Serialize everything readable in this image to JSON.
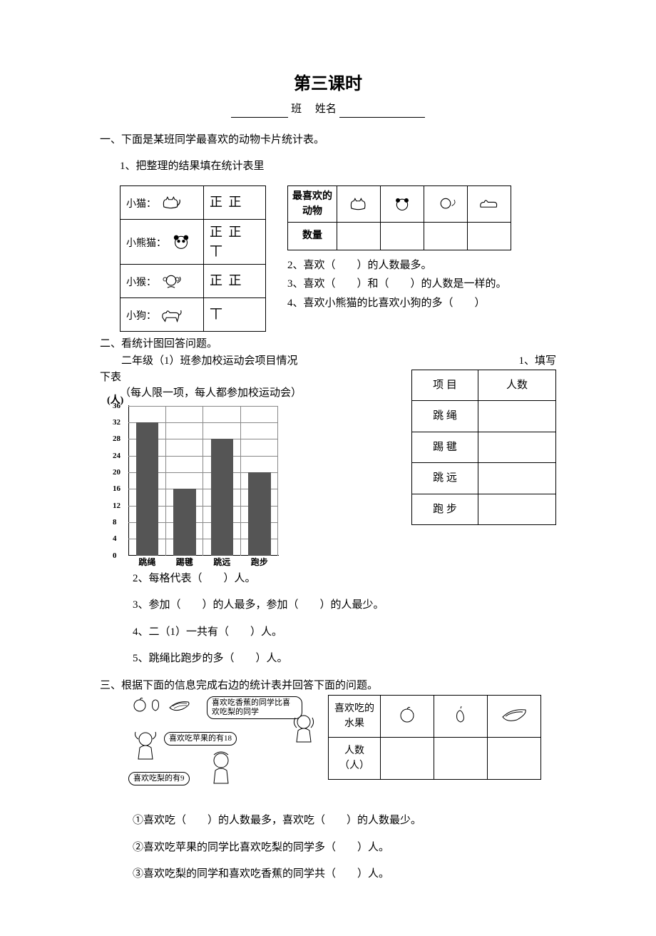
{
  "title": "第三课时",
  "class_label": "班",
  "name_label": "姓名",
  "q1": {
    "heading": "一、下面是某班同学最喜欢的动物卡片统计表。",
    "sub1": "1、把整理的结果填在统计表里",
    "animals": [
      {
        "name": "小猫：",
        "tally": "正 正"
      },
      {
        "name": "小熊猫：",
        "tally": "正 正 丅"
      },
      {
        "name": "小猴：",
        "tally": "正 正"
      },
      {
        "name": "小狗：",
        "tally": "丅"
      }
    ],
    "count_header": "最喜欢的动物",
    "count_row_label": "数量",
    "q2": "2、喜欢（　　）的人数最多。",
    "q3": "3、喜欢（　　）和（　　）的人数是一样的。",
    "q4": "4、喜欢小熊猫的比喜欢小狗的多（　　）"
  },
  "q2": {
    "heading": "二、看统计图回答问题。",
    "intro_left": "　　二年级（1）班参加校运动会项目情况",
    "intro_right": "1、填写",
    "intro_line2": "下表",
    "note": "（每人限一项，每人都参加校运动会）",
    "chart": {
      "ylabel": "(人)",
      "ymax": 36,
      "ystep": 4,
      "categories": [
        "跳绳",
        "踢毽",
        "跳远",
        "跑步"
      ],
      "values": [
        32,
        16,
        28,
        20
      ],
      "bar_color": "#555555",
      "grid_color": "#888888"
    },
    "event_table": {
      "h1": "项 目",
      "h2": "人数",
      "rows": [
        "跳 绳",
        "踢 毽",
        "跳 远",
        "跑 步"
      ]
    },
    "a2": "2、每格代表（　　）人。",
    "a3": "3、参加（　　）的人最多，参加（　　）的人最少。",
    "a4": "4、二（1）一共有（　　）人。",
    "a5": "5、跳绳比跑步的多（　　）人。"
  },
  "q3": {
    "heading": "三、根据下面的信息完成右边的统计表并回答下面的问题。",
    "bubble1": "喜欢吃香蕉的同学比喜欢吃梨的同学",
    "bubble2": "喜欢吃苹果的有18",
    "bubble3": "喜欢吃梨的有9",
    "fruit_table": {
      "h1": "喜欢吃的水果",
      "h2": "人数（人）"
    },
    "a1": "①喜欢吃（　　）的人数最多，喜欢吃（　　）的人数最少。",
    "a2": "②喜欢吃苹果的同学比喜欢吃梨的同学多（　　）人。",
    "a3": "③喜欢吃梨的同学和喜欢吃香蕉的同学共（　　）人。"
  }
}
